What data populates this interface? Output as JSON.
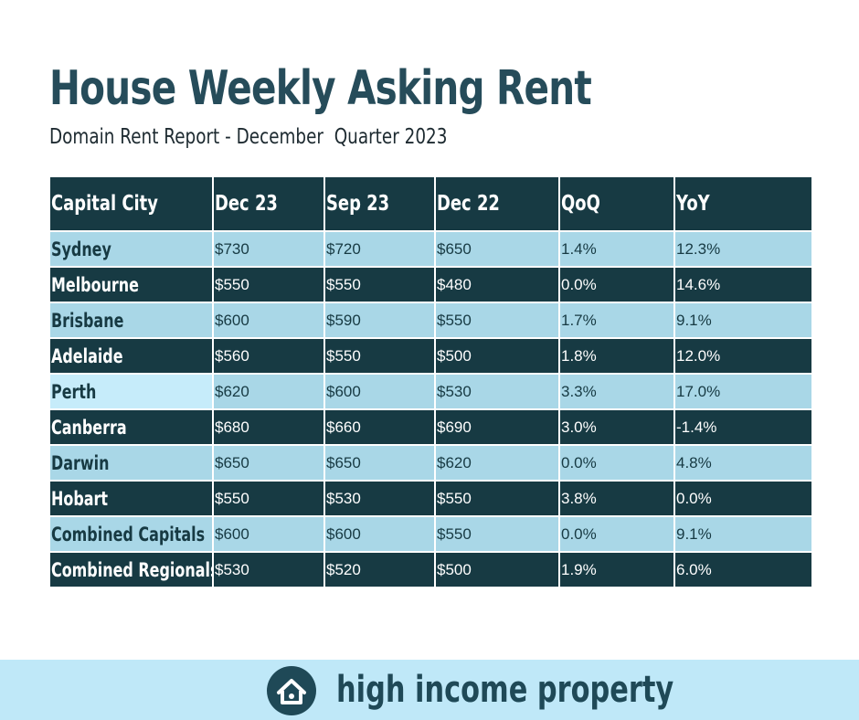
{
  "title": "House Weekly Asking Rent",
  "subtitle": "Domain Rent Report - December  Quarter 2023",
  "table": {
    "headers": [
      "Capital City",
      "Dec 23",
      "Sep 23",
      "Dec 22",
      "QoQ",
      "YoY"
    ],
    "rows": [
      [
        "Sydney",
        "$730",
        "$720",
        "$650",
        "1.4%",
        "12.3%"
      ],
      [
        "Melbourne",
        "$550",
        "$550",
        "$480",
        "0.0%",
        "14.6%"
      ],
      [
        "Brisbane",
        "$600",
        "$590",
        "$550",
        "1.7%",
        "9.1%"
      ],
      [
        "Adelaide",
        "$560",
        "$550",
        "$500",
        "1.8%",
        "12.0%"
      ],
      [
        "Perth",
        "$620",
        "$600",
        "$530",
        "3.3%",
        "17.0%"
      ],
      [
        "Canberra",
        "$680",
        "$660",
        "$690",
        "3.0%",
        "-1.4%"
      ],
      [
        "Darwin",
        "$650",
        "$650",
        "$620",
        "0.0%",
        "4.8%"
      ],
      [
        "Hobart",
        "$550",
        "$530",
        "$550",
        "3.8%",
        "0.0%"
      ],
      [
        "Combined Capitals",
        "$600",
        "$600",
        "$550",
        "0.0%",
        "9.1%"
      ],
      [
        "Combined Regionals",
        "$530",
        "$520",
        "$500",
        "1.9%",
        "6.0%"
      ]
    ]
  },
  "footer": {
    "brand": "high income property",
    "icon": "house-icon"
  },
  "colors": {
    "title": "#264c5a",
    "header_bg": "#173a43",
    "row_light": "#a9d7e7",
    "row_dark": "#173a43",
    "footer_bg": "#bfe8f8"
  }
}
